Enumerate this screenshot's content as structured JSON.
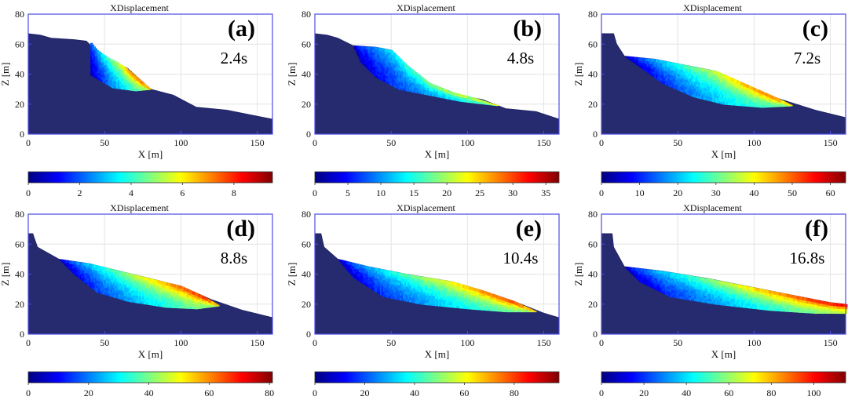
{
  "chart_data": [
    {
      "type": "scatter",
      "panel": "(a)",
      "time": "2.4s",
      "title": "XDisplacement",
      "xlabel": "X [m]",
      "ylabel": "Z [m]",
      "xlim": [
        0,
        160
      ],
      "ylim": [
        0,
        80
      ],
      "xticks": [
        "0",
        "50",
        "100",
        "150"
      ],
      "yticks": [
        "0",
        "20",
        "40",
        "60",
        "80"
      ],
      "colorbar": {
        "range": [
          0,
          9.5
        ],
        "ticks": [
          "0",
          "2",
          "4",
          "6",
          "8"
        ]
      },
      "terrain": [
        [
          0,
          67
        ],
        [
          8,
          66
        ],
        [
          15,
          64
        ],
        [
          30,
          63
        ],
        [
          38,
          62
        ],
        [
          45,
          55
        ],
        [
          55,
          48
        ],
        [
          65,
          44
        ],
        [
          80,
          30
        ],
        [
          95,
          26
        ],
        [
          110,
          18
        ],
        [
          130,
          16
        ],
        [
          150,
          12
        ],
        [
          160,
          10
        ]
      ],
      "slide": {
        "top": [
          [
            40,
            62
          ],
          [
            45,
            56
          ],
          [
            52,
            51
          ],
          [
            58,
            48
          ],
          [
            64,
            44
          ],
          [
            72,
            37
          ],
          [
            80,
            30
          ]
        ],
        "bottom": [
          [
            40,
            62
          ],
          [
            35,
            50
          ],
          [
            40,
            40
          ],
          [
            55,
            31
          ],
          [
            70,
            29
          ],
          [
            80,
            30
          ]
        ],
        "max_front": 9.0
      }
    },
    {
      "type": "scatter",
      "panel": "(b)",
      "time": "4.8s",
      "title": "XDisplacement",
      "xlabel": "X [m]",
      "ylabel": "Z [m]",
      "xlim": [
        0,
        160
      ],
      "ylim": [
        0,
        80
      ],
      "xticks": [
        "0",
        "50",
        "100",
        "150"
      ],
      "yticks": [
        "0",
        "20",
        "40",
        "60",
        "80"
      ],
      "colorbar": {
        "range": [
          0,
          37
        ],
        "ticks": [
          "0",
          "5",
          "10",
          "15",
          "20",
          "25",
          "30",
          "35"
        ]
      },
      "terrain": [
        [
          0,
          67
        ],
        [
          8,
          66
        ],
        [
          15,
          64
        ],
        [
          25,
          59
        ],
        [
          40,
          58
        ],
        [
          50,
          56
        ],
        [
          60,
          46
        ],
        [
          75,
          34
        ],
        [
          95,
          26
        ],
        [
          110,
          23
        ],
        [
          125,
          17
        ],
        [
          145,
          15
        ],
        [
          160,
          10
        ]
      ],
      "slide": {
        "top": [
          [
            25,
            59
          ],
          [
            40,
            58
          ],
          [
            50,
            56
          ],
          [
            60,
            46
          ],
          [
            75,
            34
          ],
          [
            90,
            28
          ],
          [
            105,
            24
          ],
          [
            120,
            19
          ]
        ],
        "bottom": [
          [
            25,
            59
          ],
          [
            30,
            48
          ],
          [
            40,
            38
          ],
          [
            55,
            30
          ],
          [
            75,
            26
          ],
          [
            95,
            22
          ],
          [
            120,
            19
          ]
        ],
        "max_front": 30
      }
    },
    {
      "type": "scatter",
      "panel": "(c)",
      "time": "7.2s",
      "title": "XDisplacement",
      "xlabel": "X [m]",
      "ylabel": "Z [m]",
      "xlim": [
        0,
        160
      ],
      "ylim": [
        0,
        80
      ],
      "xticks": [
        "0",
        "50",
        "100",
        "150"
      ],
      "yticks": [
        "0",
        "20",
        "40",
        "60",
        "80"
      ],
      "colorbar": {
        "range": [
          0,
          64
        ],
        "ticks": [
          "0",
          "10",
          "20",
          "30",
          "40",
          "50",
          "60"
        ]
      },
      "terrain": [
        [
          0,
          67
        ],
        [
          8,
          67
        ],
        [
          10,
          60
        ],
        [
          15,
          52
        ],
        [
          35,
          50
        ],
        [
          50,
          47
        ],
        [
          75,
          42
        ],
        [
          95,
          33
        ],
        [
          115,
          24
        ],
        [
          140,
          16
        ],
        [
          160,
          11
        ]
      ],
      "slide": {
        "top": [
          [
            15,
            52
          ],
          [
            35,
            50
          ],
          [
            50,
            47
          ],
          [
            75,
            42
          ],
          [
            95,
            33
          ],
          [
            115,
            24
          ],
          [
            125,
            19
          ]
        ],
        "bottom": [
          [
            15,
            52
          ],
          [
            25,
            45
          ],
          [
            40,
            34
          ],
          [
            60,
            25
          ],
          [
            80,
            20
          ],
          [
            105,
            18
          ],
          [
            125,
            19
          ]
        ],
        "max_front": 55
      }
    },
    {
      "type": "scatter",
      "panel": "(d)",
      "time": "8.8s",
      "title": "XDisplacement",
      "xlabel": "X [m]",
      "ylabel": "Z [m]",
      "xlim": [
        0,
        160
      ],
      "ylim": [
        0,
        80
      ],
      "xticks": [
        "0",
        "50",
        "100",
        "150"
      ],
      "yticks": [
        "0",
        "20",
        "40",
        "60",
        "80"
      ],
      "colorbar": {
        "range": [
          0,
          81
        ],
        "ticks": [
          "0",
          "20",
          "40",
          "60",
          "80"
        ]
      },
      "terrain": [
        [
          0,
          67
        ],
        [
          3,
          67
        ],
        [
          6,
          58
        ],
        [
          20,
          50
        ],
        [
          40,
          47
        ],
        [
          60,
          42
        ],
        [
          80,
          37
        ],
        [
          100,
          32
        ],
        [
          120,
          23
        ],
        [
          140,
          16
        ],
        [
          160,
          11
        ]
      ],
      "slide": {
        "top": [
          [
            20,
            50
          ],
          [
            40,
            47
          ],
          [
            60,
            42
          ],
          [
            80,
            37
          ],
          [
            100,
            32
          ],
          [
            115,
            25
          ],
          [
            125,
            19
          ]
        ],
        "bottom": [
          [
            20,
            50
          ],
          [
            30,
            40
          ],
          [
            45,
            28
          ],
          [
            65,
            22
          ],
          [
            90,
            18
          ],
          [
            110,
            17
          ],
          [
            125,
            19
          ]
        ],
        "max_front": 75
      }
    },
    {
      "type": "scatter",
      "panel": "(e)",
      "time": "10.4s",
      "title": "XDisplacement",
      "xlabel": "X [m]",
      "ylabel": "Z [m]",
      "xlim": [
        0,
        160
      ],
      "ylim": [
        0,
        80
      ],
      "xticks": [
        "0",
        "50",
        "100",
        "150"
      ],
      "yticks": [
        "0",
        "20",
        "40",
        "60",
        "80"
      ],
      "colorbar": {
        "range": [
          0,
          98
        ],
        "ticks": [
          "0",
          "20",
          "40",
          "60",
          "80"
        ]
      },
      "terrain": [
        [
          0,
          67
        ],
        [
          4,
          67
        ],
        [
          6,
          58
        ],
        [
          15,
          50
        ],
        [
          35,
          45
        ],
        [
          60,
          40
        ],
        [
          90,
          35
        ],
        [
          110,
          29
        ],
        [
          130,
          22
        ],
        [
          150,
          14
        ],
        [
          160,
          11
        ]
      ],
      "slide": {
        "top": [
          [
            15,
            50
          ],
          [
            35,
            45
          ],
          [
            60,
            40
          ],
          [
            90,
            35
          ],
          [
            110,
            29
          ],
          [
            130,
            22
          ],
          [
            145,
            15
          ]
        ],
        "bottom": [
          [
            15,
            50
          ],
          [
            25,
            38
          ],
          [
            45,
            25
          ],
          [
            70,
            20
          ],
          [
            100,
            17
          ],
          [
            125,
            15
          ],
          [
            145,
            15
          ]
        ],
        "max_front": 90
      }
    },
    {
      "type": "scatter",
      "panel": "(f)",
      "time": "16.8s",
      "title": "XDisplacement",
      "xlabel": "X [m]",
      "ylabel": "Z [m]",
      "xlim": [
        0,
        160
      ],
      "ylim": [
        0,
        80
      ],
      "xticks": [
        "0",
        "50",
        "100",
        "150"
      ],
      "yticks": [
        "0",
        "20",
        "40",
        "60",
        "80"
      ],
      "colorbar": {
        "range": [
          0,
          115
        ],
        "ticks": [
          "0",
          "20",
          "40",
          "60",
          "80",
          "100"
        ]
      },
      "terrain": [
        [
          0,
          67
        ],
        [
          7,
          67
        ],
        [
          8,
          58
        ],
        [
          15,
          45
        ],
        [
          40,
          42
        ],
        [
          70,
          37
        ],
        [
          100,
          31
        ],
        [
          130,
          25
        ],
        [
          150,
          21
        ],
        [
          160,
          20
        ]
      ],
      "slide": {
        "top": [
          [
            15,
            45
          ],
          [
            40,
            42
          ],
          [
            70,
            37
          ],
          [
            100,
            31
          ],
          [
            130,
            25
          ],
          [
            150,
            21
          ],
          [
            160,
            20
          ]
        ],
        "bottom": [
          [
            15,
            45
          ],
          [
            25,
            35
          ],
          [
            45,
            25
          ],
          [
            75,
            20
          ],
          [
            110,
            16
          ],
          [
            140,
            14
          ],
          [
            160,
            14
          ]
        ],
        "max_front": 110
      }
    }
  ]
}
